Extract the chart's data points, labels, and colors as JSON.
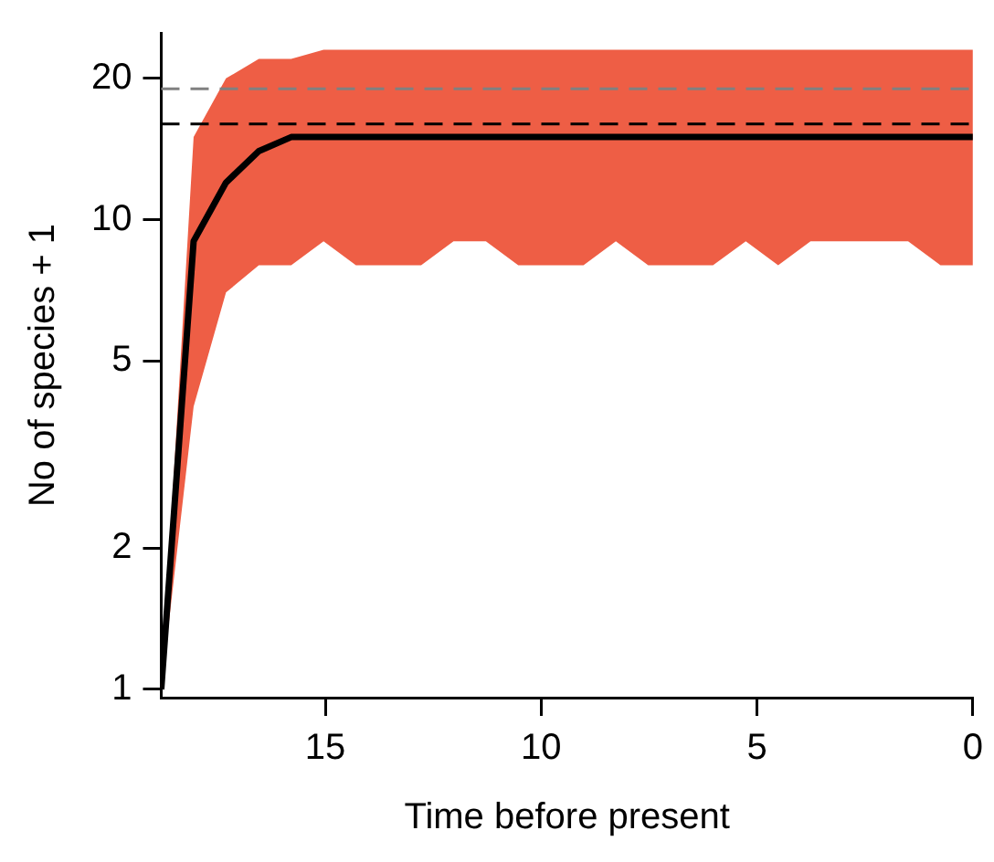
{
  "chart_data": {
    "type": "line",
    "xlabel": "Time before present",
    "ylabel": "No of species + 1",
    "x": [
      18.8,
      18.05,
      17.3,
      16.54,
      15.79,
      15.04,
      14.29,
      13.54,
      12.78,
      12.03,
      11.28,
      10.53,
      9.78,
      9.02,
      8.27,
      7.52,
      6.77,
      6.02,
      5.26,
      4.51,
      3.76,
      3.01,
      2.26,
      1.5,
      0.75,
      0
    ],
    "series": [
      {
        "color": "#000000",
        "values": [
          1,
          9,
          12,
          14,
          15,
          15,
          15,
          15,
          15,
          15,
          15,
          15,
          15,
          15,
          15,
          15,
          15,
          15,
          15,
          15,
          15,
          15,
          15,
          15,
          15,
          15
        ],
        "lower": [
          1,
          4,
          7,
          8,
          8,
          9,
          8,
          8,
          8,
          9,
          9,
          8,
          8,
          8,
          9,
          8,
          8,
          8,
          9,
          8,
          9,
          9,
          9,
          9,
          8,
          8
        ],
        "upper": [
          1,
          15,
          20,
          22,
          22,
          23,
          23,
          23,
          23,
          23,
          23,
          23,
          23,
          23,
          23,
          23,
          23,
          23,
          23,
          23,
          23,
          23,
          23,
          23,
          23,
          23
        ]
      }
    ],
    "xlim": [
      18.8,
      0
    ],
    "xticks": [
      15,
      10,
      5,
      0
    ],
    "ylim": [
      0.96,
      25
    ],
    "yticks": [
      1,
      2,
      5,
      10,
      20
    ],
    "log": "y",
    "grid": false,
    "legend": false,
    "marker": "none",
    "line_style": "solid",
    "ref_lines": [
      {
        "axis": "y",
        "value": 19,
        "color": "#808080",
        "line_style": "dashed"
      },
      {
        "axis": "y",
        "value": 16,
        "color": "#000000",
        "line_style": "dashed"
      }
    ]
  }
}
